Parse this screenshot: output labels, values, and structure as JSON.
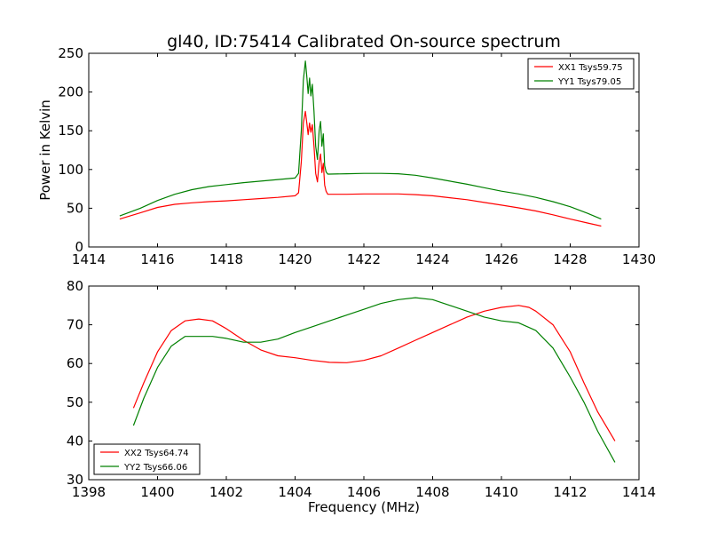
{
  "chart_data": [
    {
      "type": "line",
      "title": "gl40, ID:75414 Calibrated On-source spectrum",
      "xlabel": "",
      "ylabel": "Power in Kelvin",
      "xlim": [
        1414,
        1430
      ],
      "ylim": [
        0,
        250
      ],
      "xticks": [
        1414,
        1416,
        1418,
        1420,
        1422,
        1424,
        1426,
        1428,
        1430
      ],
      "yticks": [
        0,
        50,
        100,
        150,
        200,
        250
      ],
      "legend_position": "top-right",
      "series": [
        {
          "name": "XX1 Tsys59.75",
          "color": "#ff0000",
          "x": [
            1414.9,
            1415.5,
            1416,
            1416.5,
            1417,
            1417.5,
            1418,
            1418.5,
            1419,
            1419.5,
            1420,
            1420.1,
            1420.18,
            1420.24,
            1420.3,
            1420.34,
            1420.38,
            1420.42,
            1420.46,
            1420.5,
            1420.55,
            1420.6,
            1420.65,
            1420.7,
            1420.74,
            1420.78,
            1420.82,
            1420.86,
            1420.9,
            1420.95,
            1421,
            1421.5,
            1422,
            1422.5,
            1423,
            1423.5,
            1424,
            1424.5,
            1425,
            1425.5,
            1426,
            1426.5,
            1427,
            1427.5,
            1428,
            1428.5,
            1428.9
          ],
          "y": [
            36,
            44,
            51,
            55,
            57,
            58.5,
            59.5,
            61,
            62.5,
            64,
            66,
            70,
            110,
            160,
            175,
            160,
            145,
            160,
            148,
            158,
            130,
            95,
            84,
            110,
            120,
            96,
            108,
            80,
            72,
            68,
            68,
            68,
            68.5,
            68.5,
            68.5,
            67.5,
            66,
            63.5,
            61,
            57.5,
            54,
            50.5,
            46.5,
            41.5,
            36,
            31,
            27
          ]
        },
        {
          "name": "YY1 Tsys79.05",
          "color": "#008000",
          "x": [
            1414.9,
            1415.5,
            1416,
            1416.5,
            1417,
            1417.5,
            1418,
            1418.5,
            1419,
            1419.5,
            1420,
            1420.1,
            1420.18,
            1420.24,
            1420.3,
            1420.34,
            1420.38,
            1420.42,
            1420.46,
            1420.5,
            1420.55,
            1420.6,
            1420.65,
            1420.7,
            1420.74,
            1420.78,
            1420.82,
            1420.86,
            1420.9,
            1420.95,
            1421,
            1421.5,
            1422,
            1422.5,
            1423,
            1423.5,
            1424,
            1424.5,
            1425,
            1425.5,
            1426,
            1426.5,
            1427,
            1427.5,
            1428,
            1428.5,
            1428.9
          ],
          "y": [
            40,
            50,
            60,
            68,
            74,
            78,
            80.5,
            83,
            85,
            87,
            89,
            95,
            150,
            215,
            240,
            220,
            198,
            218,
            195,
            210,
            175,
            130,
            113,
            150,
            162,
            130,
            146,
            105,
            97,
            94,
            94,
            94.5,
            95,
            95,
            94.5,
            92.5,
            89,
            85,
            81,
            76.5,
            72,
            68.5,
            64,
            58.5,
            52,
            43.5,
            36
          ]
        }
      ]
    },
    {
      "type": "line",
      "title": "",
      "xlabel": "Frequency (MHz)",
      "ylabel": "",
      "xlim": [
        1398,
        1414
      ],
      "ylim": [
        30,
        80
      ],
      "xticks": [
        1398,
        1400,
        1402,
        1404,
        1406,
        1408,
        1410,
        1412,
        1414
      ],
      "yticks": [
        30,
        40,
        50,
        60,
        70,
        80
      ],
      "legend_position": "bottom-left",
      "series": [
        {
          "name": "XX2 Tsys64.74",
          "color": "#ff0000",
          "x": [
            1399.3,
            1399.6,
            1400,
            1400.4,
            1400.8,
            1401.2,
            1401.6,
            1402,
            1402.5,
            1403,
            1403.5,
            1404,
            1404.5,
            1405,
            1405.5,
            1406,
            1406.5,
            1407,
            1407.5,
            1408,
            1408.5,
            1409,
            1409.5,
            1410,
            1410.5,
            1410.8,
            1411,
            1411.5,
            1412,
            1412.4,
            1412.8,
            1413.3
          ],
          "y": [
            48.5,
            55,
            63,
            68.5,
            71,
            71.5,
            71,
            69,
            66,
            63.5,
            62,
            61.5,
            60.8,
            60.3,
            60.2,
            60.8,
            62,
            64,
            66,
            68,
            70,
            72,
            73.5,
            74.5,
            75,
            74.5,
            73.5,
            70,
            63,
            55,
            47.5,
            40
          ]
        },
        {
          "name": "YY2 Tsys66.06",
          "color": "#008000",
          "x": [
            1399.3,
            1399.6,
            1400,
            1400.4,
            1400.8,
            1401.2,
            1401.6,
            1402,
            1402.5,
            1403,
            1403.5,
            1404,
            1404.5,
            1405,
            1405.5,
            1406,
            1406.5,
            1407,
            1407.5,
            1408,
            1408.5,
            1409,
            1409.5,
            1410,
            1410.5,
            1411,
            1411.5,
            1412,
            1412.4,
            1412.8,
            1413.3
          ],
          "y": [
            44,
            51,
            59,
            64.5,
            67,
            67,
            67,
            66.5,
            65.5,
            65.5,
            66.3,
            68,
            69.5,
            71,
            72.5,
            74,
            75.5,
            76.5,
            77,
            76.5,
            75,
            73.5,
            72,
            71,
            70.5,
            68.5,
            64,
            56.5,
            50,
            42.5,
            34.5
          ]
        }
      ]
    }
  ]
}
